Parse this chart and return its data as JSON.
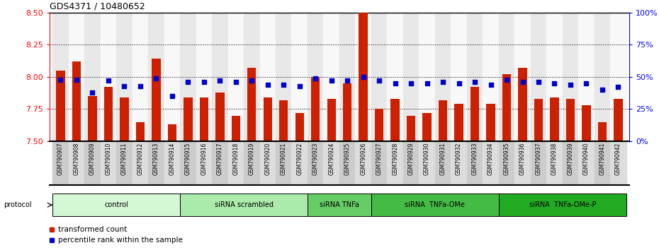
{
  "title": "GDS4371 / 10480652",
  "samples": [
    "GSM790907",
    "GSM790908",
    "GSM790909",
    "GSM790910",
    "GSM790911",
    "GSM790912",
    "GSM790913",
    "GSM790914",
    "GSM790915",
    "GSM790916",
    "GSM790917",
    "GSM790918",
    "GSM790919",
    "GSM790920",
    "GSM790921",
    "GSM790922",
    "GSM790923",
    "GSM790924",
    "GSM790925",
    "GSM790926",
    "GSM790927",
    "GSM790928",
    "GSM790929",
    "GSM790930",
    "GSM790931",
    "GSM790932",
    "GSM790933",
    "GSM790934",
    "GSM790935",
    "GSM790936",
    "GSM790937",
    "GSM790938",
    "GSM790939",
    "GSM790940",
    "GSM790941",
    "GSM790942"
  ],
  "red_values": [
    8.05,
    8.12,
    7.85,
    7.92,
    7.84,
    7.65,
    8.14,
    7.63,
    7.84,
    7.84,
    7.88,
    7.7,
    8.07,
    7.84,
    7.82,
    7.72,
    8.0,
    7.83,
    7.95,
    8.5,
    7.75,
    7.83,
    7.7,
    7.72,
    7.82,
    7.79,
    7.92,
    7.79,
    8.02,
    8.07,
    7.83,
    7.84,
    7.83,
    7.78,
    7.65,
    7.83
  ],
  "blue_values": [
    48,
    48,
    38,
    47,
    43,
    43,
    49,
    35,
    46,
    46,
    47,
    46,
    47,
    44,
    44,
    43,
    49,
    47,
    47,
    50,
    47,
    45,
    45,
    45,
    46,
    45,
    46,
    44,
    48,
    46,
    46,
    45,
    44,
    45,
    40,
    42
  ],
  "groups": [
    {
      "label": "control",
      "start": 0,
      "end": 8,
      "color": "#d4f7d4"
    },
    {
      "label": "siRNA scrambled",
      "start": 8,
      "end": 16,
      "color": "#aaeaaa"
    },
    {
      "label": "siRNA TNFa",
      "start": 16,
      "end": 20,
      "color": "#66cc66"
    },
    {
      "label": "siRNA  TNFa-OMe",
      "start": 20,
      "end": 28,
      "color": "#44bb44"
    },
    {
      "label": "siRNA  TNFa-OMe-P",
      "start": 28,
      "end": 36,
      "color": "#22aa22"
    }
  ],
  "ylim_left": [
    7.5,
    8.5
  ],
  "yticks_left": [
    7.5,
    7.75,
    8.0,
    8.25,
    8.5
  ],
  "ytick_labels_right": [
    "0%",
    "25%",
    "50%",
    "75%",
    "100%"
  ],
  "bar_color": "#cc2000",
  "dot_color": "#0000cc",
  "col_bg_even": "#e8e8e8",
  "col_bg_odd": "#f8f8f8"
}
